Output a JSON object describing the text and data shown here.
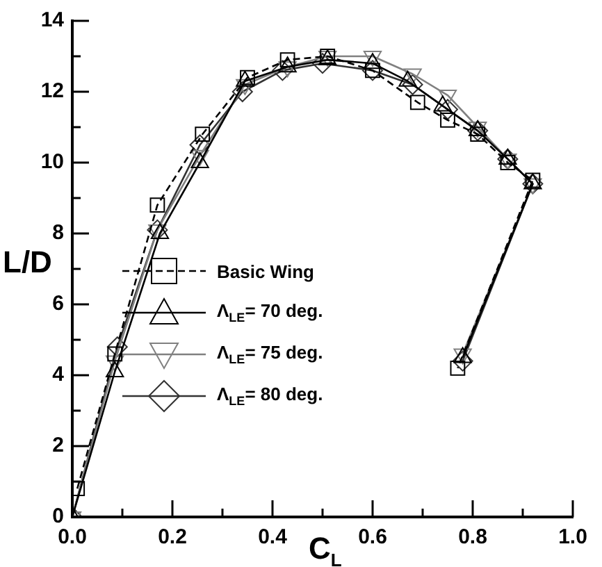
{
  "chart_data": {
    "type": "line",
    "xlabel": "C$_{L}$",
    "ylabel": "L/D",
    "xlim": [
      0,
      1
    ],
    "ylim": [
      0,
      14
    ],
    "xticks": [
      {
        "value": 0,
        "label": "0.0"
      },
      {
        "value": 0.1,
        "label": null
      },
      0.2,
      {
        "value": 0.3,
        "label": null
      },
      0.4,
      {
        "value": 0.5,
        "label": null
      },
      0.6,
      {
        "value": 0.7,
        "label": null
      },
      0.8,
      {
        "value": 0.9,
        "label": null
      },
      {
        "value": 1,
        "label": "1.0"
      }
    ],
    "yticks": [
      0,
      {
        "value": 1,
        "label": null
      },
      2,
      {
        "value": 3,
        "label": null
      },
      4,
      {
        "value": 5,
        "label": null
      },
      6,
      {
        "value": 7,
        "label": null
      },
      8,
      {
        "value": 9,
        "label": null
      },
      10,
      {
        "value": 11,
        "label": null
      },
      12,
      {
        "value": 13,
        "label": null
      },
      14
    ],
    "grid": false,
    "legend": "center",
    "series": [
      {
        "name": "Basic Wing",
        "color": "#000000",
        "line_style": "dashed",
        "marker": "square",
        "x": [
          0.01,
          0.085,
          0.17,
          0.26,
          0.35,
          0.43,
          0.51,
          0.6,
          0.69,
          0.75,
          0.81,
          0.87,
          0.92,
          0.77
        ],
        "values": [
          0.8,
          4.6,
          8.8,
          10.8,
          12.4,
          12.9,
          13.0,
          12.6,
          11.7,
          11.2,
          10.8,
          10.0,
          9.5,
          4.2
        ]
      },
      {
        "name": "Λ$_{LE}$= 70 deg.",
        "color": "#000000",
        "line_style": "solid",
        "marker": "triangle",
        "x": [
          0.0,
          0.085,
          0.175,
          0.255,
          0.345,
          0.43,
          0.51,
          0.6,
          0.67,
          0.74,
          0.81,
          0.87,
          0.92,
          0.78
        ],
        "values": [
          0.0,
          4.1,
          8.0,
          10.0,
          12.3,
          12.7,
          12.9,
          12.8,
          12.3,
          11.6,
          10.9,
          10.1,
          9.4,
          4.5
        ]
      },
      {
        "name": "Λ$_{LE}$= 75 deg.",
        "color": "#808080",
        "line_style": "solid",
        "marker": "triangle-down",
        "x": [
          0.0,
          0.085,
          0.17,
          0.255,
          0.345,
          0.43,
          0.51,
          0.6,
          0.68,
          0.75,
          0.81,
          0.87,
          0.92,
          0.78
        ],
        "values": [
          0.0,
          4.4,
          8.1,
          10.2,
          12.2,
          12.7,
          13.0,
          13.0,
          12.5,
          11.9,
          11.0,
          10.1,
          9.4,
          4.6
        ]
      },
      {
        "name": "Λ$_{LE}$= 80 deg.",
        "color": "#333333",
        "line_style": "solid",
        "marker": "diamond",
        "x": [
          0.0,
          0.09,
          0.17,
          0.255,
          0.34,
          0.42,
          0.5,
          0.6,
          0.68,
          0.75,
          0.81,
          0.87,
          0.92,
          0.78
        ],
        "values": [
          0.0,
          4.8,
          8.1,
          10.5,
          12.0,
          12.6,
          12.8,
          12.6,
          12.2,
          11.5,
          10.9,
          10.1,
          9.4,
          4.4
        ]
      }
    ]
  }
}
